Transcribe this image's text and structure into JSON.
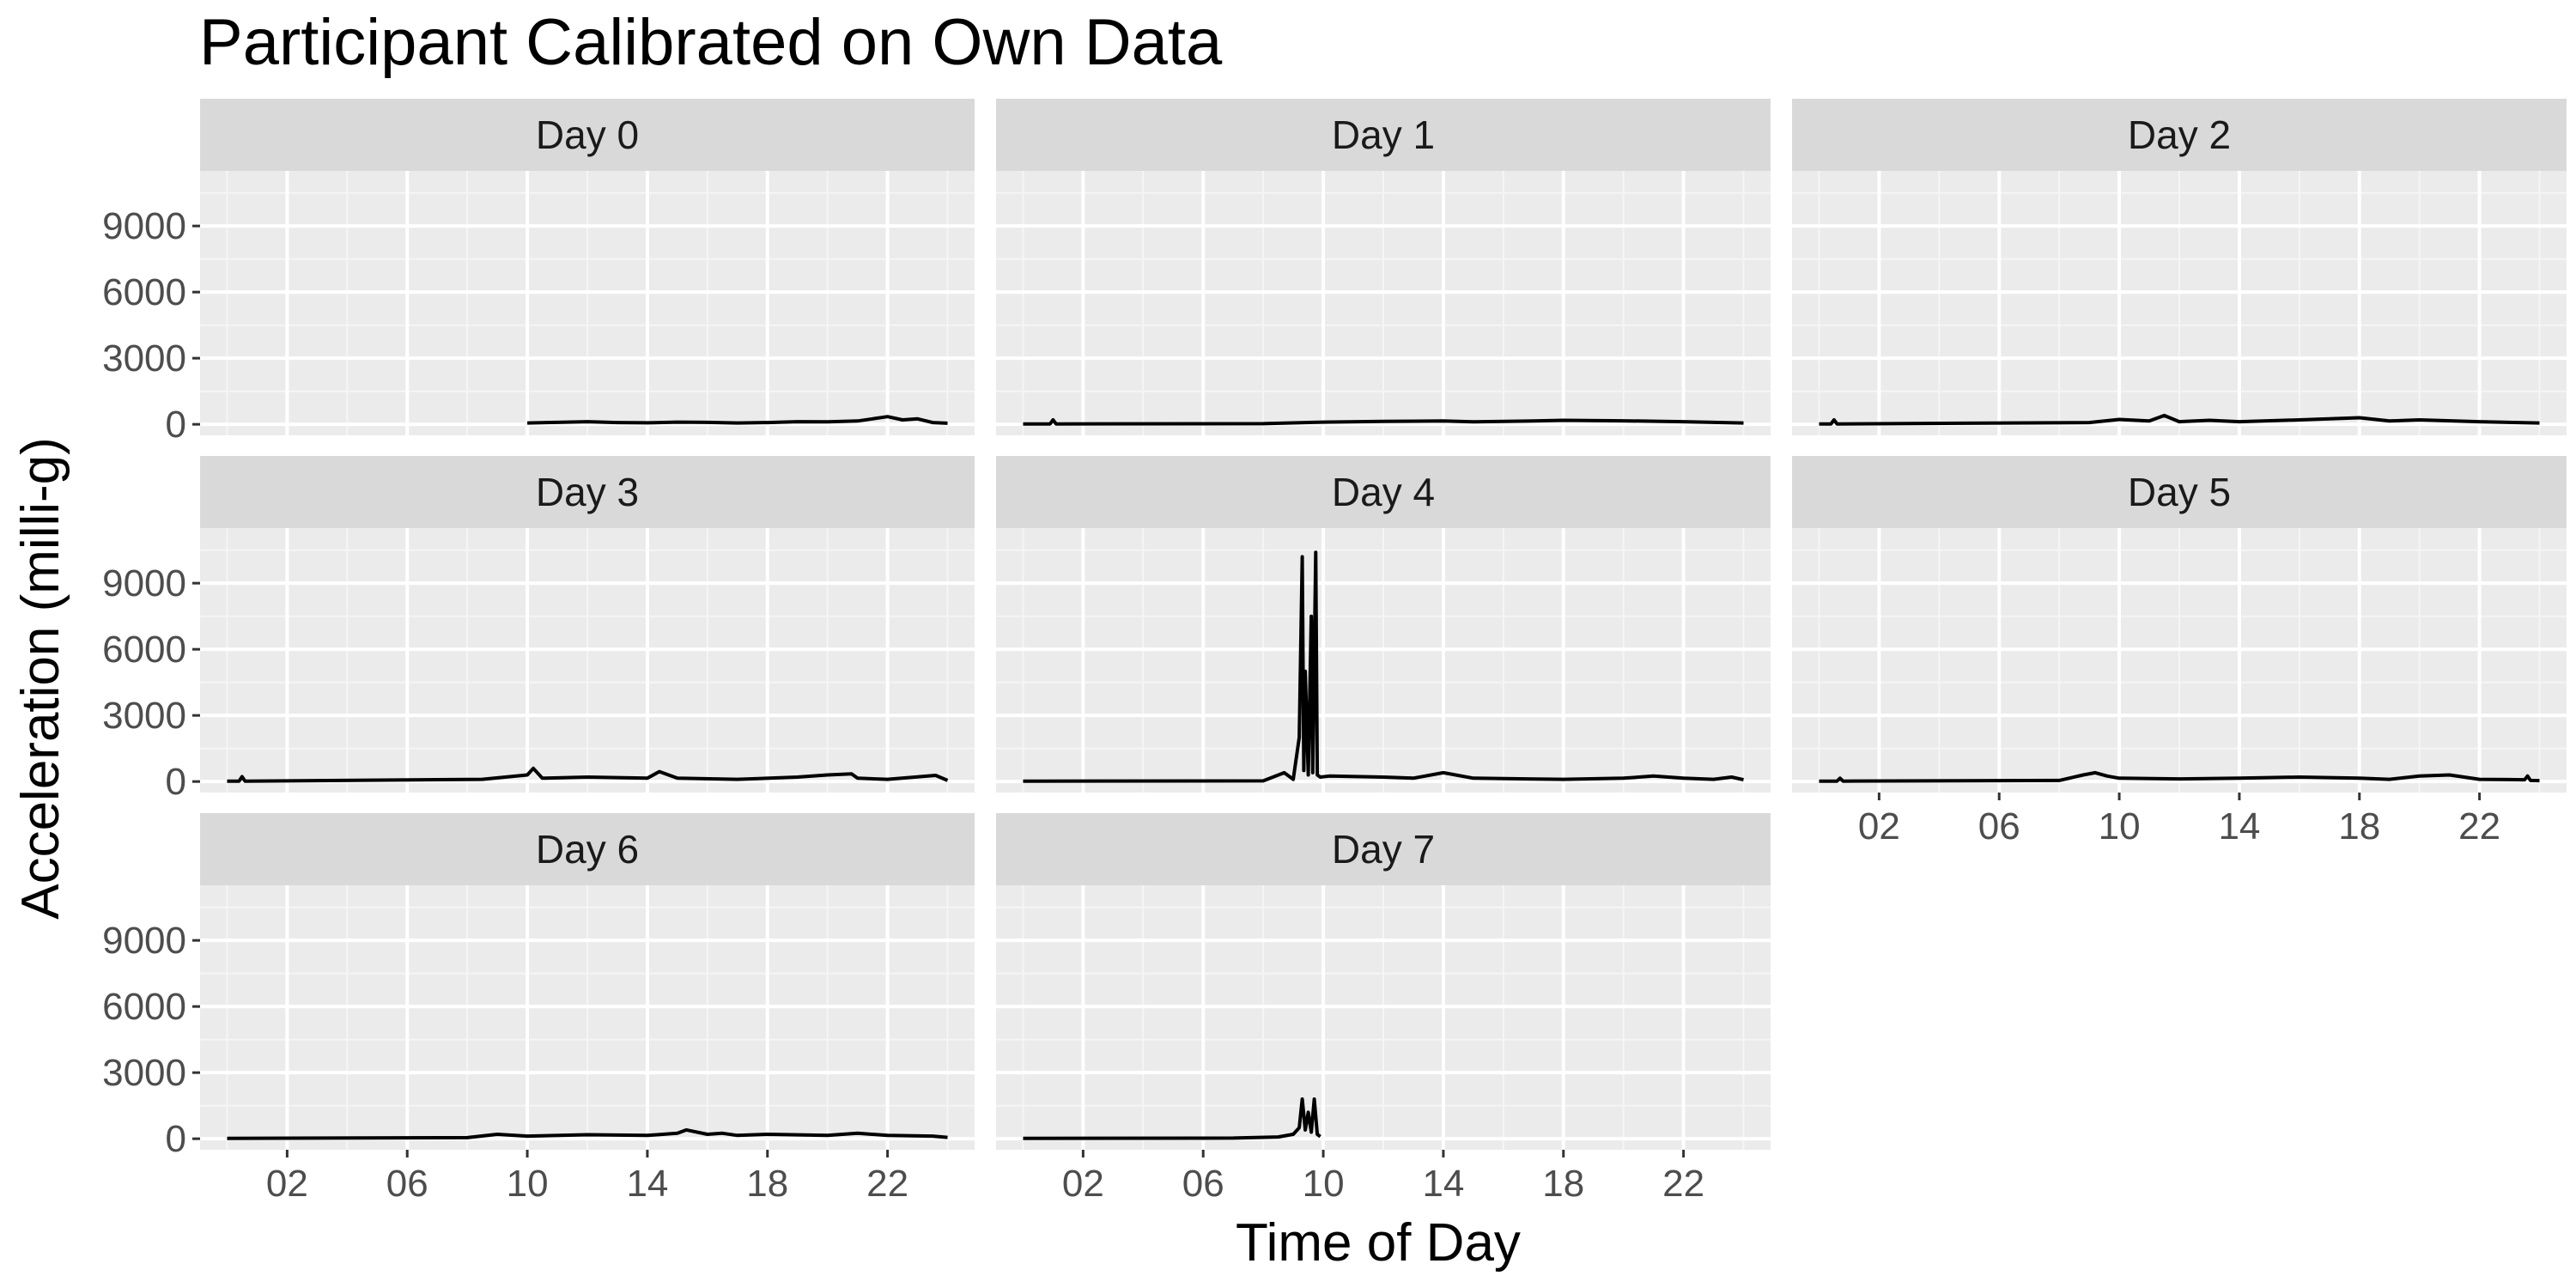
{
  "chart_data": {
    "type": "line",
    "title": "Participant Calibrated on Own Data",
    "xlabel": "Time of Day",
    "ylabel": "Acceleration (milli-g)",
    "xlim": [
      -0.9,
      24.9
    ],
    "ylim": [
      -500,
      11500
    ],
    "x_tick_values": [
      2,
      6,
      10,
      14,
      18,
      22
    ],
    "x_tick_labels": [
      "02",
      "06",
      "10",
      "14",
      "18",
      "22"
    ],
    "y_tick_values": [
      0,
      3000,
      6000,
      9000
    ],
    "y_tick_labels": [
      "0",
      "3000",
      "6000",
      "9000"
    ],
    "grid": true,
    "facet_layout": {
      "ncol": 3,
      "nrow": 3
    },
    "panels": [
      {
        "label": "Day 0",
        "x": [
          10,
          11,
          12,
          13,
          14,
          15,
          16,
          17,
          18,
          19,
          20,
          21,
          21.5,
          22,
          22.5,
          23,
          23.5,
          24
        ],
        "y": [
          60,
          90,
          120,
          80,
          70,
          100,
          90,
          60,
          80,
          120,
          110,
          150,
          250,
          350,
          200,
          250,
          80,
          50
        ]
      },
      {
        "label": "Day 1",
        "x": [
          0,
          0.9,
          1,
          1.1,
          8,
          10,
          12,
          14,
          15,
          17,
          18,
          20,
          22,
          24
        ],
        "y": [
          20,
          20,
          200,
          20,
          30,
          100,
          130,
          150,
          110,
          150,
          180,
          160,
          120,
          60
        ]
      },
      {
        "label": "Day 2",
        "x": [
          0,
          0.4,
          0.5,
          0.6,
          9,
          10,
          11,
          11.5,
          12,
          13,
          14,
          16,
          17,
          18,
          19,
          20,
          22,
          24
        ],
        "y": [
          20,
          20,
          200,
          20,
          80,
          220,
          150,
          400,
          120,
          180,
          120,
          200,
          250,
          300,
          150,
          200,
          120,
          60
        ]
      },
      {
        "label": "Day 3",
        "x": [
          0,
          0.4,
          0.5,
          0.6,
          8.5,
          10,
          10.2,
          10.5,
          12,
          14,
          14.4,
          15,
          17,
          19,
          20,
          20.8,
          21,
          22,
          23.6,
          24
        ],
        "y": [
          20,
          20,
          220,
          20,
          100,
          300,
          600,
          150,
          200,
          150,
          450,
          150,
          100,
          200,
          300,
          350,
          150,
          100,
          280,
          50
        ]
      },
      {
        "label": "Day 4",
        "x": [
          0,
          8,
          8.7,
          9.0,
          9.2,
          9.3,
          9.35,
          9.4,
          9.5,
          9.6,
          9.65,
          9.75,
          9.8,
          9.9,
          10.2,
          12,
          13,
          14.0,
          15,
          18,
          20,
          21,
          22,
          23,
          23.6,
          24
        ],
        "y": [
          20,
          30,
          400,
          100,
          2000,
          10200,
          500,
          5000,
          300,
          7500,
          400,
          10400,
          300,
          200,
          250,
          200,
          150,
          400,
          150,
          100,
          150,
          250,
          150,
          100,
          200,
          80
        ]
      },
      {
        "label": "Day 5",
        "x": [
          0,
          0.6,
          0.7,
          0.8,
          8,
          8.8,
          9.2,
          9.6,
          10,
          12,
          14,
          16,
          18,
          19,
          20,
          21,
          22,
          23.5,
          23.6,
          23.7,
          24
        ],
        "y": [
          20,
          20,
          150,
          20,
          50,
          300,
          400,
          250,
          150,
          120,
          150,
          200,
          150,
          100,
          250,
          300,
          100,
          80,
          250,
          50,
          40
        ]
      },
      {
        "label": "Day 6",
        "x": [
          0,
          8,
          9,
          10,
          12,
          14,
          15,
          15.3,
          16,
          16.5,
          17,
          18,
          20,
          21,
          22,
          23.5,
          24
        ],
        "y": [
          20,
          50,
          200,
          120,
          180,
          150,
          250,
          400,
          200,
          250,
          150,
          200,
          150,
          250,
          150,
          120,
          60
        ]
      },
      {
        "label": "Day 7",
        "x": [
          0,
          7,
          8.5,
          9.0,
          9.2,
          9.3,
          9.4,
          9.5,
          9.6,
          9.7,
          9.8,
          9.9
        ],
        "y": [
          20,
          30,
          80,
          200,
          500,
          1800,
          400,
          1200,
          300,
          1800,
          200,
          100
        ]
      }
    ]
  }
}
